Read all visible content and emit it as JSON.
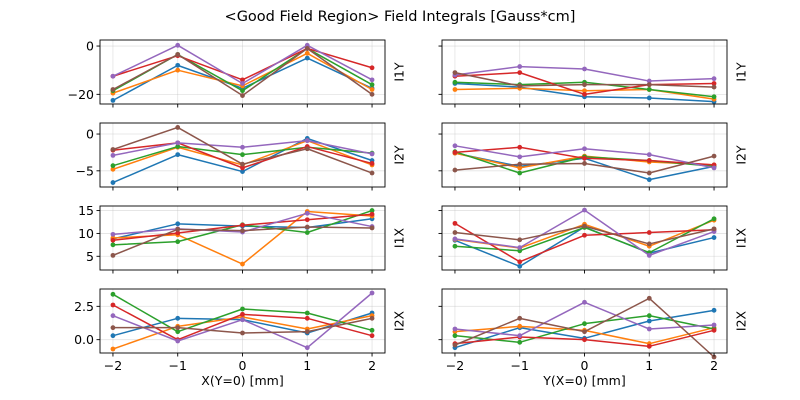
{
  "title": "<Good Field Region> Field Integrals [Gauss*cm]",
  "colors": [
    "#1f77b4",
    "#ff7f0e",
    "#2ca02c",
    "#d62728",
    "#9467bd",
    "#8c564b"
  ],
  "x_ticks": [
    "−2",
    "−1",
    "0",
    "1",
    "2"
  ],
  "chart_data": [
    {
      "type": "line",
      "row": 0,
      "col": 0,
      "ylabel": "I1Y",
      "xlabel": "",
      "x": [
        -2,
        -1,
        0,
        1,
        2
      ],
      "ylim": [
        -24,
        2.5
      ],
      "yticks": [
        0,
        -20
      ],
      "ytick_labels": [
        "0",
        "−20"
      ],
      "series": [
        {
          "values": [
            -22.5,
            -8,
            -17.5,
            -5,
            -17.5
          ]
        },
        {
          "values": [
            -19.5,
            -10,
            -16.5,
            -3,
            -18
          ]
        },
        {
          "values": [
            -18.5,
            -3.5,
            -18.5,
            -1,
            -16
          ]
        },
        {
          "values": [
            -12.5,
            -4,
            -14,
            -1,
            -9
          ]
        },
        {
          "values": [
            -12.5,
            0.3,
            -15.5,
            0.3,
            -14
          ]
        },
        {
          "values": [
            -18,
            -3.5,
            -20.5,
            -1,
            -20
          ]
        }
      ]
    },
    {
      "type": "line",
      "row": 0,
      "col": 1,
      "ylabel": "I1Y",
      "xlabel": "",
      "x": [
        -2,
        -1,
        0,
        1,
        2
      ],
      "ylim": [
        -24,
        2.5
      ],
      "yticks": [
        0,
        -20
      ],
      "ytick_labels": [
        "",
        ""
      ],
      "series": [
        {
          "values": [
            -15.5,
            -17,
            -21,
            -21.5,
            -23
          ]
        },
        {
          "values": [
            -18,
            -17.5,
            -18.5,
            -18,
            -22
          ]
        },
        {
          "values": [
            -15,
            -16,
            -15,
            -18,
            -21
          ]
        },
        {
          "values": [
            -12.5,
            -11,
            -20,
            -16,
            -15.5
          ]
        },
        {
          "values": [
            -12,
            -8.5,
            -9.5,
            -14.5,
            -13.5
          ]
        },
        {
          "values": [
            -11,
            -16.5,
            -16,
            -16,
            -17
          ]
        }
      ]
    },
    {
      "type": "line",
      "row": 1,
      "col": 0,
      "ylabel": "I2Y",
      "xlabel": "",
      "x": [
        -2,
        -1,
        0,
        1,
        2
      ],
      "ylim": [
        -7.2,
        1.5
      ],
      "yticks": [
        0,
        -5
      ],
      "ytick_labels": [
        "0",
        "−5"
      ],
      "series": [
        {
          "values": [
            -6.6,
            -2.8,
            -5.1,
            -0.6,
            -3.6
          ]
        },
        {
          "values": [
            -4.8,
            -1.8,
            -4.2,
            -0.9,
            -4.2
          ]
        },
        {
          "values": [
            -4.3,
            -1.7,
            -2.8,
            -1.8,
            -2.6
          ]
        },
        {
          "values": [
            -2.2,
            -1.2,
            -4.6,
            -1.7,
            -4.0
          ]
        },
        {
          "values": [
            -2.9,
            -1.2,
            -1.8,
            -0.9,
            -2.7
          ]
        },
        {
          "values": [
            -2.1,
            0.9,
            -4.1,
            -2.0,
            -5.3
          ]
        }
      ]
    },
    {
      "type": "line",
      "row": 1,
      "col": 1,
      "ylabel": "I2Y",
      "xlabel": "",
      "x": [
        -2,
        -1,
        0,
        1,
        2
      ],
      "ylim": [
        -7.2,
        1.5
      ],
      "yticks": [
        0,
        -5
      ],
      "ytick_labels": [
        "",
        ""
      ],
      "series": [
        {
          "values": [
            -2.6,
            -4.4,
            -3.3,
            -6.2,
            -4.4
          ]
        },
        {
          "values": [
            -2.6,
            -4.6,
            -3.0,
            -3.8,
            -4.2
          ]
        },
        {
          "values": [
            -2.4,
            -5.3,
            -3.1,
            -3.6,
            -4.4
          ]
        },
        {
          "values": [
            -2.5,
            -1.8,
            -3.3,
            -3.6,
            -4.2
          ]
        },
        {
          "values": [
            -1.6,
            -3.1,
            -2.0,
            -2.8,
            -4.6
          ]
        },
        {
          "values": [
            -4.9,
            -4.1,
            -4.0,
            -5.3,
            -3.0
          ]
        }
      ]
    },
    {
      "type": "line",
      "row": 2,
      "col": 0,
      "ylabel": "I1X",
      "xlabel": "",
      "x": [
        -2,
        -1,
        0,
        1,
        2
      ],
      "ylim": [
        2,
        16
      ],
      "yticks": [
        15,
        10,
        5
      ],
      "ytick_labels": [
        "15",
        "10",
        "5"
      ],
      "series": [
        {
          "values": [
            8.8,
            12.1,
            11.6,
            11.3,
            13.2
          ]
        },
        {
          "values": [
            9.0,
            9.7,
            3.3,
            14.8,
            13.8
          ]
        },
        {
          "values": [
            7.5,
            8.2,
            11.9,
            10.2,
            15.0
          ]
        },
        {
          "values": [
            8.5,
            10.1,
            11.8,
            13.0,
            14.2
          ]
        },
        {
          "values": [
            9.8,
            11.0,
            10.3,
            14.4,
            11.5
          ]
        },
        {
          "values": [
            5.2,
            10.9,
            10.6,
            11.4,
            11.2
          ]
        }
      ]
    },
    {
      "type": "line",
      "row": 2,
      "col": 1,
      "ylabel": "I1X",
      "xlabel": "",
      "x": [
        -2,
        -1,
        0,
        1,
        2
      ],
      "ylim": [
        2,
        16
      ],
      "yticks": [
        15,
        10,
        5
      ],
      "ytick_labels": [
        "",
        ""
      ],
      "series": [
        {
          "values": [
            8.5,
            2.8,
            11.4,
            5.7,
            9.1
          ]
        },
        {
          "values": [
            8.7,
            6.8,
            12.0,
            7.2,
            12.9
          ]
        },
        {
          "values": [
            7.2,
            6.2,
            11.3,
            5.8,
            13.2
          ]
        },
        {
          "values": [
            12.2,
            3.8,
            9.6,
            10.2,
            10.8
          ]
        },
        {
          "values": [
            8.8,
            6.9,
            15.1,
            5.2,
            10.4
          ]
        },
        {
          "values": [
            10.2,
            8.6,
            11.6,
            7.7,
            11.0
          ]
        }
      ]
    },
    {
      "type": "line",
      "row": 3,
      "col": 0,
      "ylabel": "I2X",
      "xlabel": "X(Y=0) [mm]",
      "x": [
        -2,
        -1,
        0,
        1,
        2
      ],
      "ylim": [
        -1.0,
        3.8
      ],
      "yticks": [
        2.5,
        0.0
      ],
      "ytick_labels": [
        "2.5",
        "0.0"
      ],
      "series": [
        {
          "values": [
            0.3,
            1.6,
            1.5,
            0.5,
            2.0
          ]
        },
        {
          "values": [
            -0.7,
            1.0,
            1.7,
            0.8,
            1.8
          ]
        },
        {
          "values": [
            3.4,
            0.6,
            2.3,
            2.0,
            0.7
          ]
        },
        {
          "values": [
            2.6,
            0.0,
            1.9,
            1.6,
            0.3
          ]
        },
        {
          "values": [
            1.8,
            -0.1,
            1.5,
            -0.6,
            3.5
          ]
        },
        {
          "values": [
            0.9,
            0.9,
            0.5,
            0.6,
            1.6
          ]
        }
      ]
    },
    {
      "type": "line",
      "row": 3,
      "col": 1,
      "ylabel": "I2X",
      "xlabel": "Y(X=0) [mm]",
      "x": [
        -2,
        -1,
        0,
        1,
        2
      ],
      "ylim": [
        -1.0,
        3.8
      ],
      "yticks": [
        2.5,
        0.0
      ],
      "ytick_labels": [
        "",
        ""
      ],
      "series": [
        {
          "values": [
            -0.6,
            0.9,
            0.1,
            1.4,
            2.2
          ]
        },
        {
          "values": [
            0.6,
            1.0,
            0.7,
            -0.3,
            0.9
          ]
        },
        {
          "values": [
            0.3,
            -0.2,
            1.2,
            1.8,
            0.8
          ]
        },
        {
          "values": [
            -0.3,
            0.2,
            0.0,
            -0.5,
            0.7
          ]
        },
        {
          "values": [
            0.8,
            0.3,
            2.8,
            0.8,
            1.1
          ]
        },
        {
          "values": [
            -0.4,
            1.6,
            0.6,
            3.1,
            -1.3
          ]
        }
      ]
    }
  ]
}
